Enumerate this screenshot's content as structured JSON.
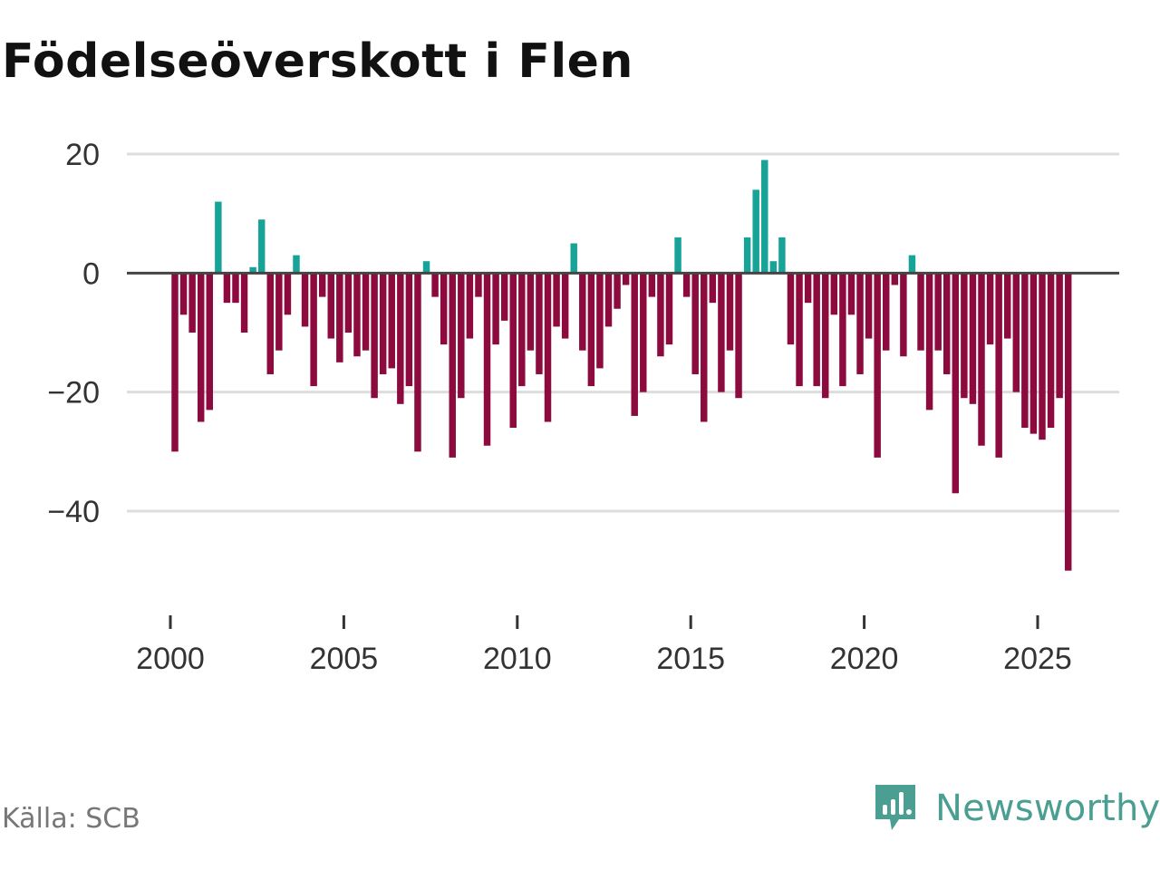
{
  "title": "Födelseöverskott i Flen",
  "source": "Källa: SCB",
  "brand": "Newsworthy",
  "colors": {
    "positive": "#17a398",
    "negative": "#8c0a3d",
    "grid": "#dddddd",
    "zero": "#444444",
    "brand": "#4a9e92"
  },
  "chart_data": {
    "type": "bar",
    "title": "Födelseöverskott i Flen",
    "xlabel": "",
    "ylabel": "",
    "ylim": [
      -50,
      20
    ],
    "yticks": [
      20,
      0,
      -20,
      -40
    ],
    "ytick_labels": [
      "20",
      "0",
      "−20",
      "−40"
    ],
    "xlim": [
      1999.3,
      2027.3
    ],
    "xticks": [
      2000,
      2005,
      2010,
      2015,
      2020,
      2025
    ],
    "xtick_labels": [
      "2000",
      "2005",
      "2010",
      "2015",
      "2020",
      "2025"
    ],
    "grid": true,
    "start": 2000.0,
    "step": 0.25,
    "values": [
      -30,
      -7,
      -10,
      -25,
      -23,
      12,
      -5,
      -5,
      -10,
      1,
      9,
      -17,
      -13,
      -7,
      3,
      -9,
      -19,
      -4,
      -11,
      -15,
      -10,
      -14,
      -13,
      -21,
      -17,
      -16,
      -22,
      -19,
      -30,
      2,
      -4,
      -12,
      -31,
      -21,
      -11,
      -4,
      -29,
      -12,
      -8,
      -26,
      -19,
      -13,
      -17,
      -25,
      -9,
      -11,
      5,
      -13,
      -19,
      -16,
      -9,
      -6,
      -2,
      -24,
      -20,
      -4,
      -14,
      -12,
      6,
      -4,
      -17,
      -25,
      -5,
      -20,
      -13,
      -21,
      6,
      14,
      19,
      2,
      6,
      -12,
      -19,
      -5,
      -19,
      -21,
      -7,
      -19,
      -7,
      -17,
      -11,
      -31,
      -13,
      -2,
      -14,
      3,
      -13,
      -23,
      -13,
      -17,
      -37,
      -21,
      -22,
      -29,
      -12,
      -31,
      -11,
      -20,
      -26,
      -27,
      -28,
      -26,
      -21,
      -50
    ]
  }
}
